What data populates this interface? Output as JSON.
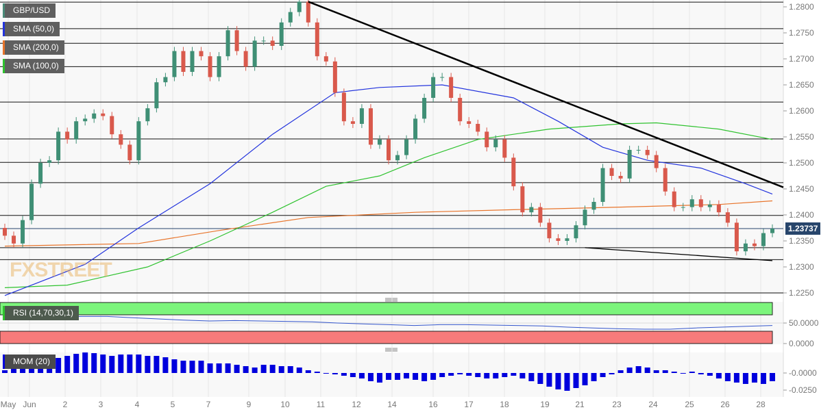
{
  "legend": {
    "symbol": "GBP/USD",
    "sma50": "SMA (50,0)",
    "sma200": "SMA (200,0)",
    "sma100": "SMA (100,0)",
    "rsi": "RSI (14,70,30,1)",
    "mom": "MOM (20)"
  },
  "watermark": "FXSTREET",
  "colors": {
    "up": "#3f8f75",
    "down": "#d9594c",
    "sma50": "#2233dd",
    "sma200": "#e8742a",
    "sma100": "#2ec22e",
    "rsi_overbought": "#7cf57c",
    "rsi_oversold": "#f77b7b",
    "mom": "#0000dd",
    "price_tag": "#27456b"
  },
  "chart_data": [
    {
      "type": "candlestick",
      "title": "GBP/USD",
      "last_price": "1.23737",
      "ylim": [
        1.225,
        1.281
      ],
      "y_ticks": [
        "1.2800",
        "1.2750",
        "1.2700",
        "1.2650",
        "1.2600",
        "1.2550",
        "1.2500",
        "1.2450",
        "1.2400",
        "1.2350",
        "1.2300",
        "1.2250"
      ],
      "x_ticks": [
        "May",
        "Jun",
        "2",
        "3",
        "4",
        "5",
        "7",
        "9",
        "10",
        "11",
        "12",
        "14",
        "16",
        "17",
        "18",
        "19",
        "21",
        "23",
        "24",
        "25",
        "26",
        "28"
      ],
      "first_open": 1.2375,
      "closes": [
        1.236,
        1.2345,
        1.239,
        1.246,
        1.25,
        1.2505,
        1.256,
        1.2545,
        1.258,
        1.2585,
        1.2595,
        1.259,
        1.2555,
        1.2535,
        1.2505,
        1.258,
        1.2605,
        1.2655,
        1.2665,
        1.2715,
        1.2675,
        1.2715,
        1.2705,
        1.2665,
        1.2705,
        1.2755,
        1.2715,
        1.2685,
        1.2735,
        1.2735,
        1.2725,
        1.277,
        1.279,
        1.281,
        1.277,
        1.2705,
        1.2695,
        1.2635,
        1.258,
        1.2575,
        1.2605,
        1.2535,
        1.2545,
        1.2505,
        1.2515,
        1.2545,
        1.2585,
        1.2625,
        1.2665,
        1.2665,
        1.2625,
        1.258,
        1.2575,
        1.256,
        1.253,
        1.2545,
        1.251,
        1.2455,
        1.2405,
        1.2415,
        1.2385,
        1.2355,
        1.235,
        1.2355,
        1.238,
        1.241,
        1.2425,
        1.249,
        1.2475,
        1.247,
        1.2525,
        1.2525,
        1.2515,
        1.249,
        1.2445,
        1.2415,
        1.2415,
        1.243,
        1.2415,
        1.242,
        1.2405,
        1.2385,
        1.233,
        1.2345,
        1.234,
        1.2365,
        1.23737
      ],
      "sma50": [
        [
          0,
          1.2245
        ],
        [
          9,
          1.2305
        ],
        [
          15,
          1.2375
        ],
        [
          23,
          1.246
        ],
        [
          30,
          1.2555
        ],
        [
          37,
          1.2635
        ],
        [
          42,
          1.2645
        ],
        [
          49,
          1.265
        ],
        [
          57,
          1.2625
        ],
        [
          62,
          1.258
        ],
        [
          67,
          1.253
        ],
        [
          72,
          1.2505
        ],
        [
          78,
          1.249
        ],
        [
          83,
          1.246
        ],
        [
          86,
          1.244
        ]
      ],
      "sma200": [
        [
          0,
          1.234
        ],
        [
          15,
          1.2345
        ],
        [
          24,
          1.237
        ],
        [
          34,
          1.2395
        ],
        [
          46,
          1.2405
        ],
        [
          57,
          1.241
        ],
        [
          69,
          1.2415
        ],
        [
          80,
          1.242
        ],
        [
          86,
          1.2427
        ]
      ],
      "sma100": [
        [
          0,
          1.226
        ],
        [
          7,
          1.2265
        ],
        [
          16,
          1.23
        ],
        [
          23,
          1.235
        ],
        [
          30,
          1.2405
        ],
        [
          36,
          1.2455
        ],
        [
          42,
          1.2475
        ],
        [
          47,
          1.251
        ],
        [
          53,
          1.2545
        ],
        [
          61,
          1.2565
        ],
        [
          69,
          1.2575
        ],
        [
          73,
          1.2577
        ],
        [
          80,
          1.2565
        ],
        [
          86,
          1.2545
        ]
      ],
      "horizontal_levels": [
        1.2809,
        1.2758,
        1.273,
        1.2685,
        1.2617,
        1.2546,
        1.2501,
        1.2462,
        1.2399,
        1.2337,
        1.2314,
        1.225
      ],
      "trendlines": [
        [
          [
            34,
            1.281
          ],
          [
            88,
            1.2453
          ]
        ],
        [
          [
            65,
            1.2337
          ],
          [
            86,
            1.2312
          ]
        ]
      ]
    },
    {
      "type": "line",
      "title": "RSI (14,70,30,1)",
      "ylim": [
        0,
        100
      ],
      "y_ticks": [
        "50.0000",
        "0.0000"
      ],
      "overbought": 70,
      "oversold": 30,
      "values": [
        58,
        62,
        64,
        66,
        66,
        63,
        60,
        57,
        55,
        56,
        55,
        54,
        53,
        50,
        48,
        46,
        44,
        46,
        46,
        45,
        44,
        43,
        40,
        38,
        36,
        35,
        35,
        38,
        40,
        42,
        44
      ]
    },
    {
      "type": "bar",
      "title": "MOM (20)",
      "y_ticks": [
        "-0.0000",
        "-0.0250"
      ],
      "values": [
        0.004,
        0.006,
        0.008,
        0.01,
        0.012,
        0.014,
        0.022,
        0.025,
        0.028,
        0.03,
        0.029,
        0.027,
        0.025,
        0.027,
        0.027,
        0.027,
        0.025,
        0.025,
        0.023,
        0.02,
        0.018,
        0.018,
        0.018,
        0.014,
        0.014,
        0.014,
        0.012,
        0.01,
        0.008,
        0.012,
        0.012,
        0.01,
        0.01,
        0.008,
        0.004,
        0.002,
        0.0,
        -0.002,
        -0.004,
        -0.006,
        -0.008,
        -0.012,
        -0.014,
        -0.01,
        -0.01,
        -0.008,
        -0.01,
        -0.012,
        -0.01,
        -0.006,
        -0.004,
        -0.002,
        -0.004,
        -0.006,
        -0.008,
        -0.008,
        -0.006,
        -0.004,
        -0.008,
        -0.012,
        -0.016,
        -0.02,
        -0.024,
        -0.026,
        -0.022,
        -0.018,
        -0.012,
        -0.006,
        -0.002,
        0.004,
        0.008,
        0.01,
        0.008,
        0.004,
        0.004,
        0.002,
        0.0,
        0.002,
        -0.002,
        -0.004,
        -0.008,
        -0.012,
        -0.014,
        -0.016,
        -0.014,
        -0.016,
        -0.012
      ]
    }
  ]
}
